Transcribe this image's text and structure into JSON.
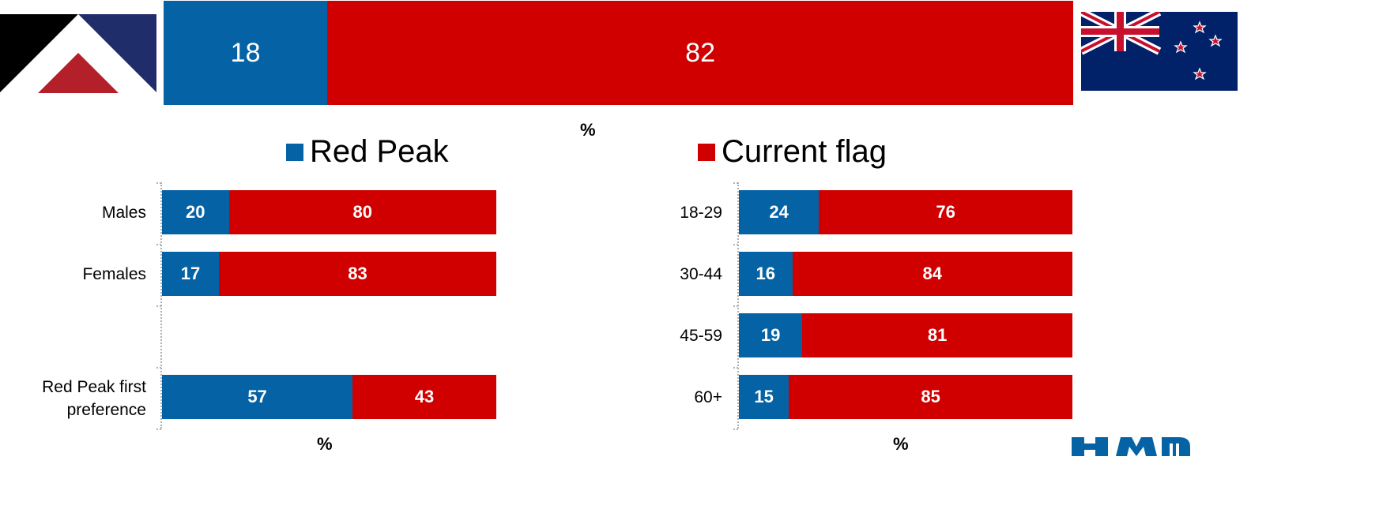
{
  "colors": {
    "red_peak": "#0563a5",
    "current_flag": "#d00000"
  },
  "chart_data": [
    {
      "type": "bar",
      "orientation": "horizontal",
      "stacked": true,
      "categories": [
        ""
      ],
      "series": [
        {
          "name": "Red Peak",
          "values": [
            18
          ]
        },
        {
          "name": "Current flag",
          "values": [
            82
          ]
        }
      ],
      "xlabel": "%",
      "xlim": [
        0,
        100
      ]
    },
    {
      "type": "bar",
      "orientation": "horizontal",
      "stacked": true,
      "categories": [
        "Males",
        "Females",
        "",
        "Red Peak first preference"
      ],
      "series": [
        {
          "name": "Red Peak",
          "values": [
            20,
            17,
            null,
            57
          ]
        },
        {
          "name": "Current flag",
          "values": [
            80,
            83,
            null,
            43
          ]
        }
      ],
      "xlabel": "%",
      "xlim": [
        0,
        100
      ]
    },
    {
      "type": "bar",
      "orientation": "horizontal",
      "stacked": true,
      "categories": [
        "18-29",
        "30-44",
        "45-59",
        "60+"
      ],
      "series": [
        {
          "name": "Red Peak",
          "values": [
            24,
            16,
            19,
            15
          ]
        },
        {
          "name": "Current flag",
          "values": [
            76,
            84,
            81,
            85
          ]
        }
      ],
      "xlabel": "%",
      "xlim": [
        0,
        100
      ]
    }
  ],
  "legend": [
    {
      "label": "Red Peak"
    },
    {
      "label": "Current flag"
    }
  ],
  "icons": [
    "red-peak-flag-icon",
    "new-zealand-flag-icon",
    "logo-icon"
  ]
}
